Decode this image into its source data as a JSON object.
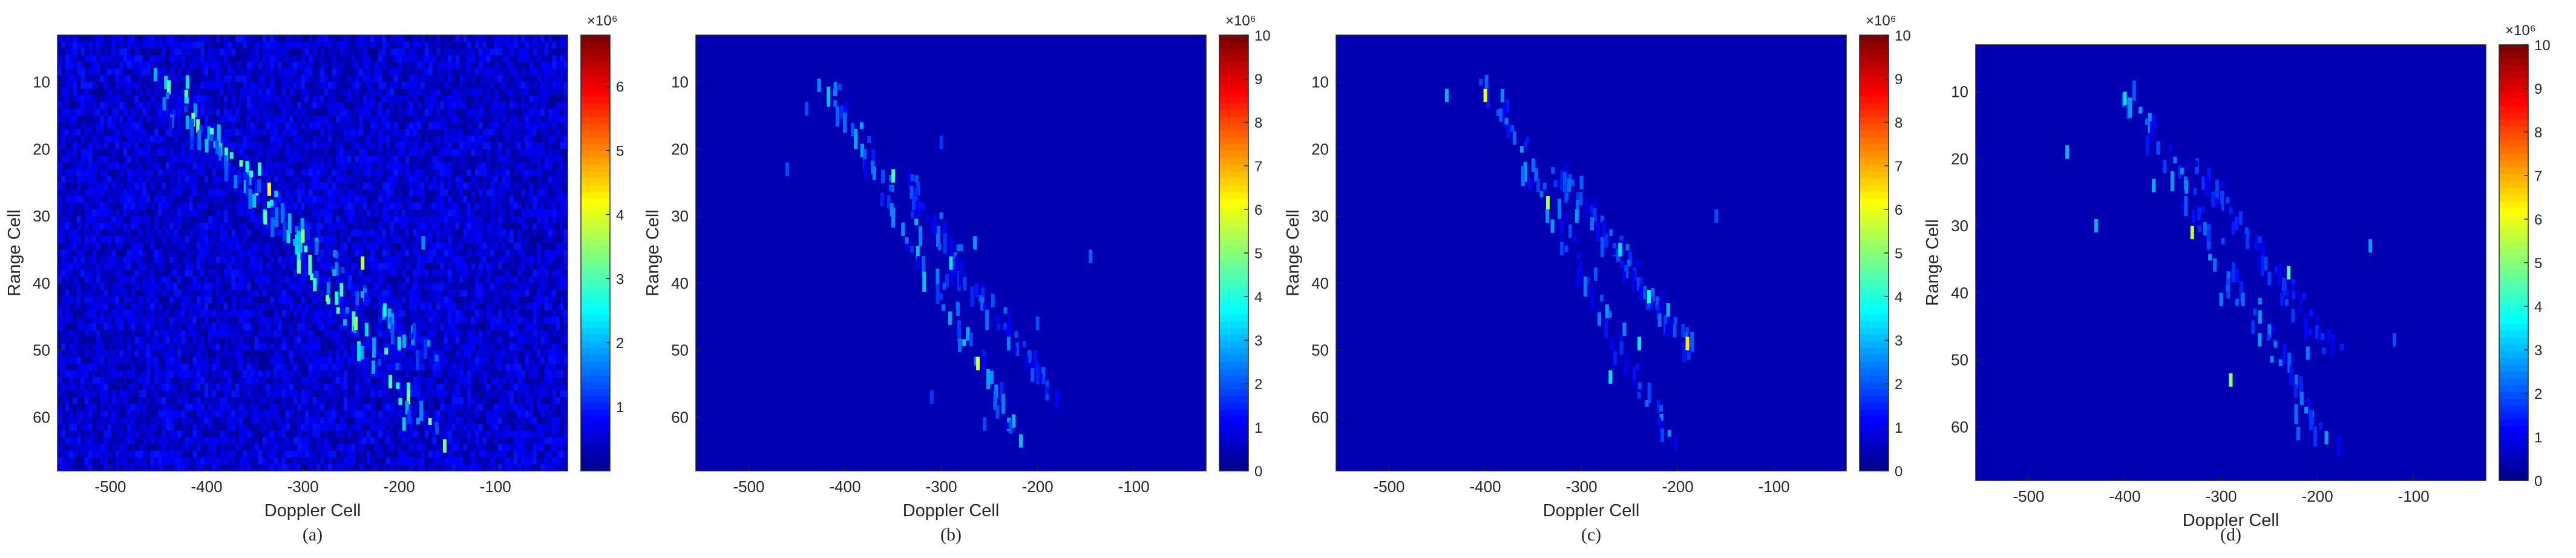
{
  "colors": {
    "background": "#ffffff",
    "plot_background": "#00008f",
    "axis": "#262626",
    "colormap": "jet"
  },
  "panels": [
    {
      "caption": "(a)",
      "xlabel": "Doppler Cell",
      "ylabel": "Range Cell",
      "xticks": [
        "-500",
        "-400",
        "-300",
        "-200",
        "-100"
      ],
      "yticks": [
        "10",
        "20",
        "30",
        "40",
        "50",
        "60"
      ],
      "colorbar_ticks": [
        "1",
        "2",
        "3",
        "4",
        "5",
        "6"
      ],
      "colorbar_exponent": "×10⁶"
    },
    {
      "caption": "(b)",
      "xlabel": "Doppler Cell",
      "ylabel": "Range Cell",
      "xticks": [
        "-500",
        "-400",
        "-300",
        "-200",
        "-100"
      ],
      "yticks": [
        "10",
        "20",
        "30",
        "40",
        "50",
        "60"
      ],
      "colorbar_ticks": [
        "0",
        "1",
        "2",
        "3",
        "4",
        "5",
        "6",
        "7",
        "8",
        "9",
        "10"
      ],
      "colorbar_exponent": "×10⁶"
    },
    {
      "caption": "(c)",
      "xlabel": "Doppler Cell",
      "ylabel": "Range Cell",
      "xticks": [
        "-500",
        "-400",
        "-300",
        "-200",
        "-100"
      ],
      "yticks": [
        "10",
        "20",
        "30",
        "40",
        "50",
        "60"
      ],
      "colorbar_ticks": [
        "0",
        "1",
        "2",
        "3",
        "4",
        "5",
        "6",
        "7",
        "8",
        "9",
        "10"
      ],
      "colorbar_exponent": "×10⁶"
    },
    {
      "caption": "(d)",
      "xlabel": "Doppler Cell",
      "ylabel": "Range Cell",
      "xticks": [
        "-500",
        "-400",
        "-300",
        "-200",
        "-100"
      ],
      "yticks": [
        "10",
        "20",
        "30",
        "40",
        "50",
        "60"
      ],
      "colorbar_ticks": [
        "0",
        "1",
        "2",
        "3",
        "4",
        "5",
        "6",
        "7",
        "8",
        "9",
        "10"
      ],
      "colorbar_exponent": "×10⁶"
    }
  ],
  "chart_data": [
    {
      "type": "heatmap",
      "title": "",
      "xlabel": "Doppler Cell",
      "ylabel": "Range Cell",
      "xlim": [
        -555,
        -25
      ],
      "ylim": [
        3,
        68
      ],
      "y_reversed": true,
      "colorbar_range": [
        0,
        6.8
      ],
      "colorbar_multiplier": 1000000,
      "background_level": 0.55,
      "background_noise": true,
      "bands": [
        {
          "x_start": -445,
          "y_start": 8,
          "x_end": -160,
          "y_end": 63,
          "peak": 3.5
        },
        {
          "x_start": -450,
          "y_start": 12,
          "x_end": -170,
          "y_end": 50,
          "peak": 2.2
        }
      ],
      "points": [
        {
          "x": -335,
          "y": 25,
          "v": 4.3
        },
        {
          "x": -300,
          "y": 32,
          "v": 3.4
        },
        {
          "x": -238,
          "y": 36,
          "v": 3.8
        },
        {
          "x": -245,
          "y": 45,
          "v": 3.6
        },
        {
          "x": -420,
          "y": 9,
          "v": 2.4
        },
        {
          "x": -345,
          "y": 22,
          "v": 2.8
        },
        {
          "x": -215,
          "y": 43,
          "v": 2.6
        },
        {
          "x": -200,
          "y": 48,
          "v": 2.4
        },
        {
          "x": -420,
          "y": 15,
          "v": 2.0
        },
        {
          "x": -175,
          "y": 33,
          "v": 1.8
        },
        {
          "x": -260,
          "y": 40,
          "v": 2.9
        },
        {
          "x": -195,
          "y": 60,
          "v": 2.2
        }
      ]
    },
    {
      "type": "heatmap",
      "title": "",
      "xlabel": "Doppler Cell",
      "ylabel": "Range Cell",
      "xlim": [
        -555,
        -25
      ],
      "ylim": [
        3,
        68
      ],
      "y_reversed": true,
      "colorbar_range": [
        0,
        10
      ],
      "colorbar_multiplier": 1000000,
      "background_level": 0.5,
      "background_noise": false,
      "bands": [
        {
          "x_start": -420,
          "y_start": 9,
          "x_end": -220,
          "y_end": 62,
          "peak": 3.2
        },
        {
          "x_start": -345,
          "y_start": 23,
          "x_end": -185,
          "y_end": 56,
          "peak": 2.4
        }
      ],
      "points": [
        {
          "x": -350,
          "y": 23,
          "v": 4.5
        },
        {
          "x": -262,
          "y": 51,
          "v": 6.0
        },
        {
          "x": -290,
          "y": 36,
          "v": 3.5
        },
        {
          "x": -410,
          "y": 10,
          "v": 2.5
        },
        {
          "x": -440,
          "y": 13,
          "v": 2.0
        },
        {
          "x": -265,
          "y": 33,
          "v": 2.8
        },
        {
          "x": -145,
          "y": 35,
          "v": 2.2
        },
        {
          "x": -460,
          "y": 22,
          "v": 2.0
        },
        {
          "x": -230,
          "y": 48,
          "v": 2.5
        },
        {
          "x": -200,
          "y": 45,
          "v": 2.0
        },
        {
          "x": -300,
          "y": 18,
          "v": 1.8
        },
        {
          "x": -310,
          "y": 56,
          "v": 1.8
        },
        {
          "x": -255,
          "y": 60,
          "v": 2.0
        }
      ]
    },
    {
      "type": "heatmap",
      "title": "",
      "xlabel": "Doppler Cell",
      "ylabel": "Range Cell",
      "xlim": [
        -555,
        -25
      ],
      "ylim": [
        3,
        68
      ],
      "y_reversed": true,
      "colorbar_range": [
        0,
        10
      ],
      "colorbar_multiplier": 1000000,
      "background_level": 0.5,
      "background_noise": false,
      "bands": [
        {
          "x_start": -400,
          "y_start": 9,
          "x_end": -210,
          "y_end": 63,
          "peak": 2.8
        },
        {
          "x_start": -330,
          "y_start": 22,
          "x_end": -180,
          "y_end": 50,
          "peak": 2.4
        }
      ],
      "points": [
        {
          "x": -400,
          "y": 11,
          "v": 6.0
        },
        {
          "x": -335,
          "y": 27,
          "v": 5.5
        },
        {
          "x": -190,
          "y": 48,
          "v": 6.5
        },
        {
          "x": -230,
          "y": 41,
          "v": 4.0
        },
        {
          "x": -260,
          "y": 34,
          "v": 3.5
        },
        {
          "x": -240,
          "y": 48,
          "v": 3.5
        },
        {
          "x": -305,
          "y": 29,
          "v": 2.8
        },
        {
          "x": -440,
          "y": 11,
          "v": 3.0
        },
        {
          "x": -210,
          "y": 43,
          "v": 3.0
        },
        {
          "x": -270,
          "y": 53,
          "v": 3.5
        },
        {
          "x": -300,
          "y": 24,
          "v": 2.2
        },
        {
          "x": -160,
          "y": 29,
          "v": 2.0
        }
      ]
    },
    {
      "type": "heatmap",
      "title": "",
      "xlabel": "Doppler Cell",
      "ylabel": "Range Cell",
      "xlim": [
        -555,
        -25
      ],
      "ylim": [
        3,
        68
      ],
      "y_reversed": true,
      "colorbar_range": [
        0,
        10
      ],
      "colorbar_multiplier": 1000000,
      "background_level": 0.5,
      "background_noise": false,
      "bands": [
        {
          "x_start": -400,
          "y_start": 9,
          "x_end": -190,
          "y_end": 62,
          "peak": 2.8
        },
        {
          "x_start": -330,
          "y_start": 20,
          "x_end": -185,
          "y_end": 48,
          "peak": 2.0
        }
      ],
      "points": [
        {
          "x": -330,
          "y": 30,
          "v": 5.5
        },
        {
          "x": -290,
          "y": 52,
          "v": 5.0
        },
        {
          "x": -230,
          "y": 36,
          "v": 4.5
        },
        {
          "x": -400,
          "y": 10,
          "v": 3.5
        },
        {
          "x": -370,
          "y": 23,
          "v": 3.0
        },
        {
          "x": -460,
          "y": 18,
          "v": 3.0
        },
        {
          "x": -430,
          "y": 29,
          "v": 3.0
        },
        {
          "x": -145,
          "y": 32,
          "v": 2.8
        },
        {
          "x": -260,
          "y": 46,
          "v": 2.8
        },
        {
          "x": -210,
          "y": 48,
          "v": 2.5
        },
        {
          "x": -120,
          "y": 46,
          "v": 2.0
        },
        {
          "x": -220,
          "y": 60,
          "v": 2.2
        },
        {
          "x": -300,
          "y": 40,
          "v": 2.5
        }
      ]
    }
  ]
}
